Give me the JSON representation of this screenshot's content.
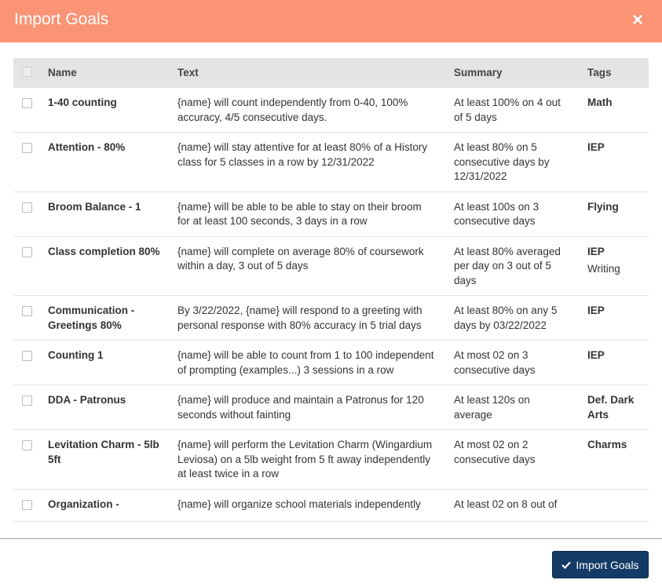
{
  "header": {
    "title": "Import Goals",
    "close": "×"
  },
  "table": {
    "columns": [
      "Name",
      "Text",
      "Summary",
      "Tags"
    ],
    "rows": [
      {
        "name": "1-40 counting",
        "text": "{name} will count independently from 0-40, 100% accuracy, 4/5 consecutive days.",
        "summary": "At least 100% on 4 out of 5 days",
        "tags": [
          "Math"
        ]
      },
      {
        "name": "Attention - 80%",
        "text": "{name} will stay attentive for at least 80% of a History class for 5 classes in a row by 12/31/2022",
        "summary": "At least 80% on 5 consecutive days by 12/31/2022",
        "tags": [
          "IEP"
        ]
      },
      {
        "name": "Broom Balance - 1",
        "text": "{name} will be able to be able to stay on their broom for at least 100 seconds, 3 days in a row",
        "summary": "At least 100s on 3 consecutive days",
        "tags": [
          "Flying"
        ]
      },
      {
        "name": "Class completion 80%",
        "text": "{name} will complete on average 80% of coursework within a day, 3 out of 5 days",
        "summary": "At least 80% averaged per day on 3 out of 5 days",
        "tags": [
          "IEP",
          "Writing"
        ]
      },
      {
        "name": "Communication - Greetings 80%",
        "text": "By 3/22/2022, {name} will respond to a greeting with personal response with 80% accuracy in 5 trial days",
        "summary": "At least 80% on any 5 days by 03/22/2022",
        "tags": [
          "IEP"
        ]
      },
      {
        "name": "Counting 1",
        "text": "{name} will be able to count from 1 to 100 independent of prompting (examples...) 3 sessions in a row",
        "summary": "At most 02 on 3 consecutive days",
        "tags": [
          "IEP"
        ]
      },
      {
        "name": "DDA - Patronus",
        "text": "{name} will produce and maintain a Patronus for 120 seconds without fainting",
        "summary": "At least 120s on average",
        "tags": [
          "Def. Dark Arts"
        ]
      },
      {
        "name": "Levitation Charm - 5lb 5ft",
        "text": "{name} will perform the Levitation Charm (Wingardium Leviosa) on a 5lb weight from 5 ft away independently at least twice in a row",
        "summary": "At most 02 on 2 consecutive days",
        "tags": [
          "Charms"
        ]
      },
      {
        "name": "Organization -",
        "text": "{name} will organize school materials independently",
        "summary": "At least 02 on 8 out of",
        "tags": []
      }
    ]
  },
  "footer": {
    "button": "Import Goals"
  }
}
